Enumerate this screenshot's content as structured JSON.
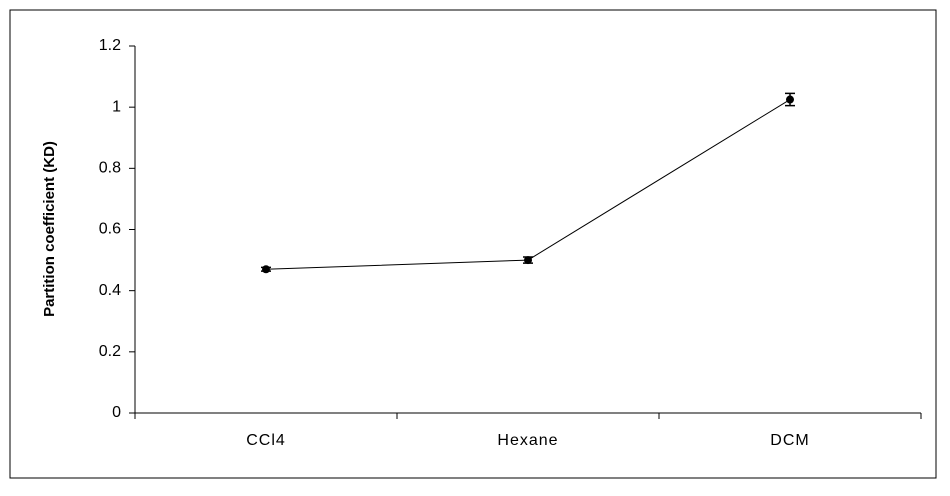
{
  "chart_data": {
    "type": "line",
    "y_label": "Partition coefficient (KD)",
    "categories": [
      "CCl4",
      "Hexane",
      "DCM"
    ],
    "series": [
      {
        "color": "#000000",
        "values": [
          0.47,
          0.5,
          1.025
        ],
        "errors": [
          0.006,
          0.01,
          0.02
        ]
      }
    ],
    "ylim": [
      0,
      1.2
    ],
    "yticks": [
      0,
      0.2,
      0.4,
      0.6,
      0.8,
      1,
      1.2
    ],
    "grid": false
  }
}
